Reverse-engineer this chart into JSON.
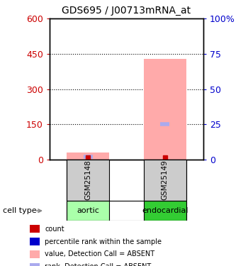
{
  "title": "GDS695 / J00713mRNA_at",
  "samples": [
    "GSM25148",
    "GSM25149"
  ],
  "cell_types": [
    "aortic",
    "endocardial"
  ],
  "pink_bar_values": [
    30,
    430
  ],
  "blue_rank_values": [
    2,
    25
  ],
  "ylim_left": [
    0,
    600
  ],
  "ylim_right": [
    0,
    100
  ],
  "left_yticks": [
    0,
    150,
    300,
    450,
    600
  ],
  "right_yticks": [
    0,
    25,
    50,
    75,
    100
  ],
  "right_yticklabels": [
    "0",
    "25",
    "50",
    "75",
    "100%"
  ],
  "left_ytick_color": "#cc0000",
  "right_ytick_color": "#0000cc",
  "dotted_lines": [
    150,
    300,
    450
  ],
  "sample_box_color": "#cccccc",
  "cell_type_colors": [
    "#aaffaa",
    "#33cc33"
  ],
  "pink_bar_color": "#ffaaaa",
  "blue_rank_color": "#aaaaee",
  "red_count_color": "#cc0000",
  "blue_count_color": "#0000cc",
  "legend_items": [
    {
      "label": "count",
      "color": "#cc0000"
    },
    {
      "label": "percentile rank within the sample",
      "color": "#0000cc"
    },
    {
      "label": "value, Detection Call = ABSENT",
      "color": "#ffaaaa"
    },
    {
      "label": "rank, Detection Call = ABSENT",
      "color": "#aaaaee"
    }
  ],
  "cell_type_label": "cell type",
  "bar_width": 0.55,
  "x_positions": [
    0.5,
    1.5
  ],
  "xlim": [
    0,
    2
  ]
}
